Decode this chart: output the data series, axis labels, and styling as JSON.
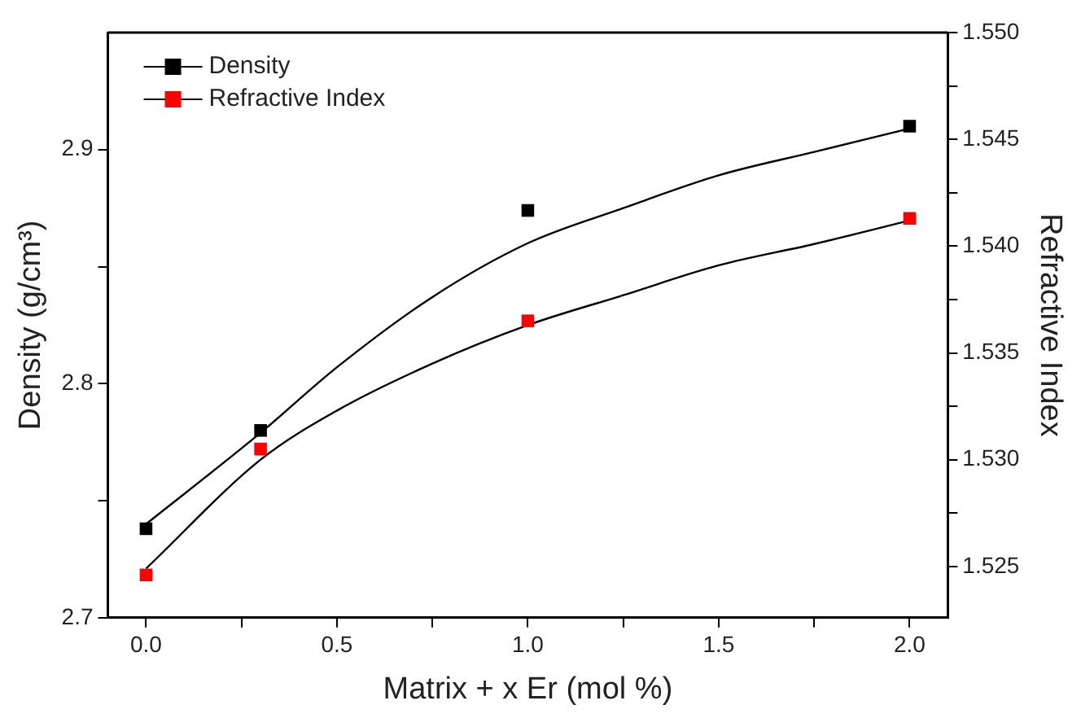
{
  "chart_data": {
    "type": "scatter",
    "xlabel": "Matrix + x Er (mol %)",
    "ylabel": "Density (g/cm³)",
    "y2label": "Refractive Index",
    "xlim": [
      -0.1,
      2.1
    ],
    "xticks": [
      {
        "value": 0,
        "label": "0.0"
      },
      {
        "value": 0.25,
        "label": null
      },
      0.5,
      {
        "value": 0.75,
        "label": null
      },
      {
        "value": 1,
        "label": "1.0"
      },
      {
        "value": 1.25,
        "label": null
      },
      1.5,
      {
        "value": 1.75,
        "label": null
      },
      {
        "value": 2,
        "label": "2.0"
      }
    ],
    "ylim": [
      2.7,
      2.95
    ],
    "yticks": [
      2.7,
      {
        "value": 2.75,
        "label": null
      },
      2.8,
      {
        "value": 2.85,
        "label": null
      },
      2.9
    ],
    "y2lim": [
      1.5226,
      1.55
    ],
    "y2ticks": [
      {
        "value": 1.525,
        "label": "1.525"
      },
      {
        "value": 1.5275,
        "label": null
      },
      {
        "value": 1.53,
        "label": "1.530"
      },
      {
        "value": 1.5325,
        "label": null
      },
      {
        "value": 1.535,
        "label": "1.535"
      },
      {
        "value": 1.5375,
        "label": null
      },
      {
        "value": 1.54,
        "label": "1.540"
      },
      {
        "value": 1.5425,
        "label": null
      },
      {
        "value": 1.545,
        "label": "1.545"
      },
      {
        "value": 1.5475,
        "label": null
      },
      {
        "value": 1.55,
        "label": "1.550"
      }
    ],
    "grid": false,
    "legend": "top left",
    "marker": "square",
    "series": [
      {
        "name": "Density",
        "color": "#000000",
        "x": [
          0,
          0.3,
          1,
          2
        ],
        "values": [
          2.738,
          2.78,
          2.874,
          2.91
        ]
      },
      {
        "name": "Refractive Index",
        "axis": "y2",
        "color": "#ff0000",
        "x": [
          0,
          0.3,
          1,
          2
        ],
        "values": [
          1.5246,
          1.5305,
          1.5365,
          1.5413
        ]
      },
      {
        "type": "line",
        "color": "#000000",
        "marker": "none",
        "x": [
          0,
          0.3,
          0.5,
          0.75,
          1,
          1.25,
          1.5,
          1.75,
          2
        ],
        "values": [
          2.74,
          2.779,
          2.807,
          2.837,
          2.86,
          2.875,
          2.889,
          2.899,
          2.909
        ]
      },
      {
        "type": "line",
        "axis": "y2",
        "color": "#000000",
        "marker": "none",
        "x": [
          0,
          0.3,
          0.5,
          0.75,
          1,
          1.25,
          1.5,
          1.75,
          2
        ],
        "values": [
          1.5249,
          1.53,
          1.5323,
          1.5345,
          1.5363,
          1.5377,
          1.5391,
          1.5401,
          1.5412
        ]
      }
    ]
  }
}
